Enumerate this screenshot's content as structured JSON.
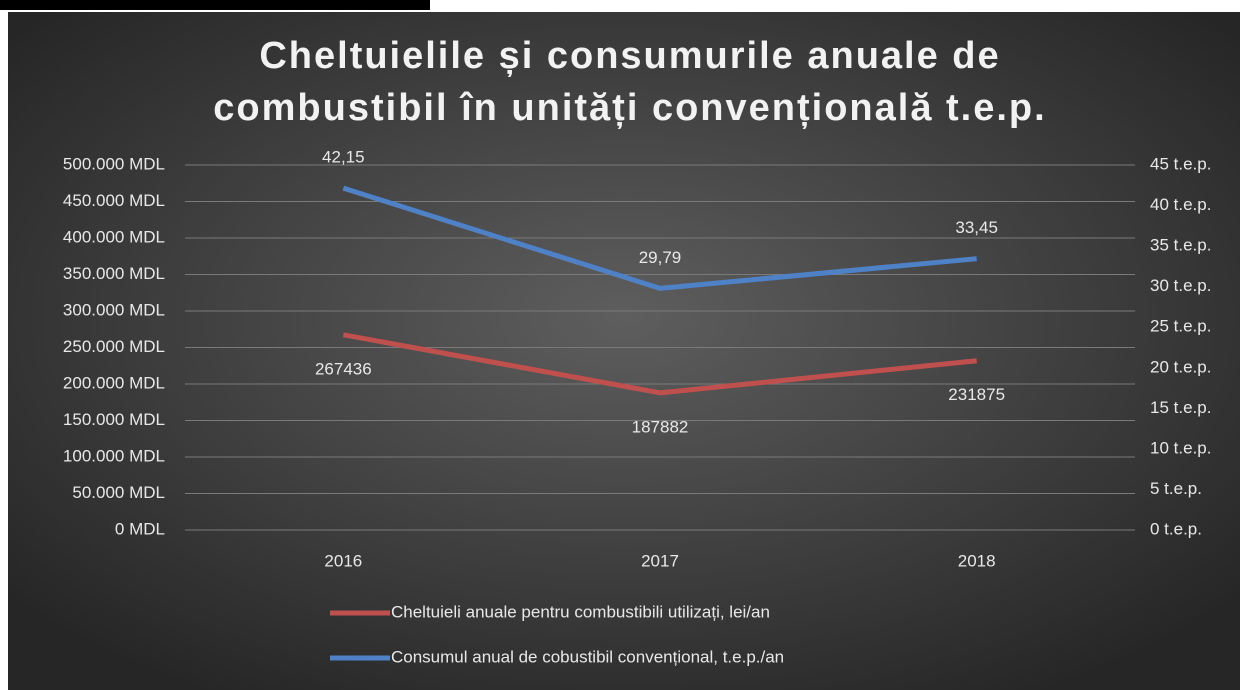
{
  "chart_data": {
    "type": "line",
    "title": [
      "Cheltuielile și consumurile anuale de",
      "combustibil în unități convențională t.e.p."
    ],
    "categories": [
      "2016",
      "2017",
      "2018"
    ],
    "series": [
      {
        "name": "Cheltuieli anuale pentru combustibili utilizați, lei/an",
        "color": "#c0504d",
        "values": [
          267436,
          187882,
          231875
        ]
      },
      {
        "name": "Consumul anual de cobustibil convențional, t.e.p./an",
        "color": "#4f81c7",
        "axis": "y2",
        "values": [
          42.15,
          29.79,
          33.45
        ],
        "value_labels": [
          "42,15",
          "29,79",
          "33,45"
        ]
      }
    ],
    "ylim": [
      0,
      500000
    ],
    "yticks": [
      {
        "value": 0,
        "label": "0 MDL"
      },
      {
        "value": 50000,
        "label": "50.000 MDL"
      },
      {
        "value": 100000,
        "label": "100.000 MDL"
      },
      {
        "value": 150000,
        "label": "150.000 MDL"
      },
      {
        "value": 200000,
        "label": "200.000 MDL"
      },
      {
        "value": 250000,
        "label": "250.000 MDL"
      },
      {
        "value": 300000,
        "label": "300.000 MDL"
      },
      {
        "value": 350000,
        "label": "350.000 MDL"
      },
      {
        "value": 400000,
        "label": "400.000 MDL"
      },
      {
        "value": 450000,
        "label": "450.000 MDL"
      },
      {
        "value": 500000,
        "label": "500.000 MDL"
      }
    ],
    "y2lim": [
      0,
      45
    ],
    "y2ticks": [
      {
        "value": 0,
        "label": "0 t.e.p."
      },
      {
        "value": 5,
        "label": "5 t.e.p."
      },
      {
        "value": 10,
        "label": "10 t.e.p."
      },
      {
        "value": 15,
        "label": "15 t.e.p."
      },
      {
        "value": 20,
        "label": "20 t.e.p."
      },
      {
        "value": 25,
        "label": "25 t.e.p."
      },
      {
        "value": 30,
        "label": "30 t.e.p."
      },
      {
        "value": 35,
        "label": "35 t.e.p."
      },
      {
        "value": 40,
        "label": "40 t.e.p."
      },
      {
        "value": 45,
        "label": "45 t.e.p."
      }
    ],
    "grid": true,
    "legend": "bottom"
  }
}
